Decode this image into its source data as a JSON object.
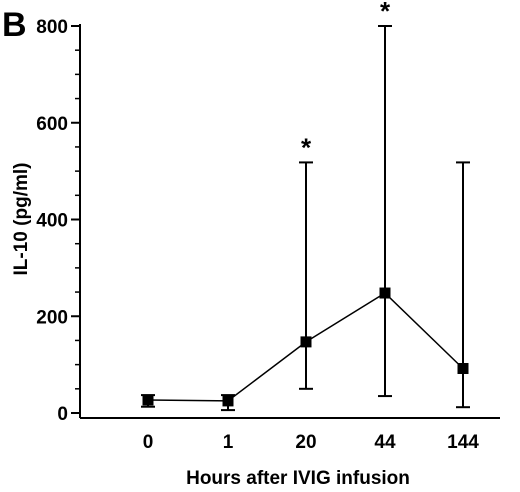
{
  "panel_label": "B",
  "chart_data": {
    "type": "scatter",
    "title": "",
    "xlabel": "Hours after IVIG infusion",
    "ylabel": "IL-10 (pg/ml)",
    "ylim": [
      0,
      800
    ],
    "yticks": [
      "0",
      "200",
      "400",
      "600",
      "800"
    ],
    "categories": [
      "0",
      "1",
      "20",
      "44",
      "144"
    ],
    "series": [
      {
        "values": [
          27,
          25,
          147,
          248,
          92
        ],
        "error_low": [
          13,
          6,
          50,
          35,
          12
        ],
        "error_high": [
          37,
          37,
          518,
          800,
          518
        ],
        "annotations": [
          "",
          "",
          "*",
          "*",
          ""
        ]
      }
    ],
    "connected": true,
    "marker": "square",
    "grid": false,
    "legend": "none",
    "colors": {
      "marker": "#000000",
      "line": "#000000"
    }
  }
}
